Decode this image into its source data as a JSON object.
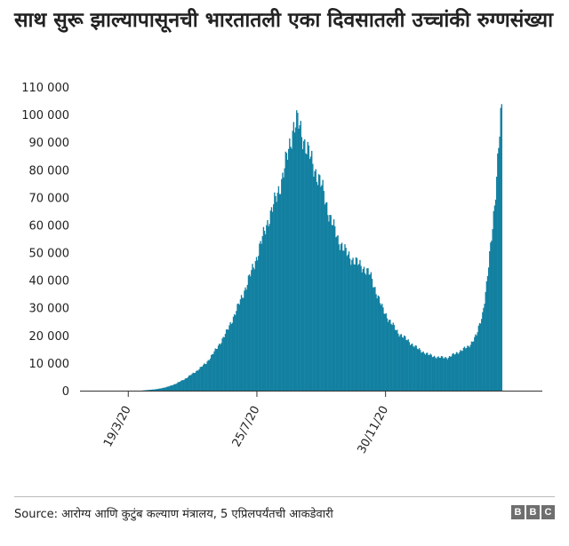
{
  "title": "साथ सुरू झाल्यापासूनची भारतातली एका दिवसातली उच्चांकी रुग्णसंख्या",
  "source": "Source: आरोग्य आणि कुटुंब कल्याण मंत्रालय, 5 एप्रिलपर्यंतची आकडेवारी",
  "logo": [
    "B",
    "B",
    "C"
  ],
  "colors": {
    "bar": "#1380A1",
    "text": "#222222",
    "axis": "#333333",
    "rule": "#bbbbbb"
  },
  "chart_data": {
    "type": "bar",
    "title": "साथ सुरू झाल्यापासूनची भारतातली एका दिवसातली उच्चांकी रुग्णसंख्या",
    "xlabel": "",
    "ylabel": "",
    "ylim": [
      0,
      110000
    ],
    "y_ticks": [
      0,
      10000,
      20000,
      30000,
      40000,
      50000,
      60000,
      70000,
      80000,
      90000,
      100000,
      110000
    ],
    "y_tick_labels": [
      "0",
      "10 000",
      "20 000",
      "30 000",
      "40 000",
      "50 000",
      "60 000",
      "70 000",
      "80 000",
      "90 000",
      "100 000",
      "110 000"
    ],
    "x_tick_labels": [
      "19/3/20",
      "25/7/20",
      "30/11/20"
    ],
    "x_tick_days": [
      48,
      176,
      304
    ],
    "x_range_days": [
      0,
      460
    ],
    "grid": false,
    "legend": "none",
    "series": [
      {
        "unit": "daily",
        "points": [
          [
            0,
            0
          ],
          [
            60,
            0
          ],
          [
            75,
            500
          ],
          [
            85,
            1200
          ],
          [
            95,
            2500
          ],
          [
            105,
            4500
          ],
          [
            115,
            7000
          ],
          [
            125,
            10000
          ],
          [
            135,
            15000
          ],
          [
            145,
            21000
          ],
          [
            155,
            29000
          ],
          [
            165,
            38000
          ],
          [
            175,
            48000
          ],
          [
            185,
            60000
          ],
          [
            192,
            67000
          ],
          [
            200,
            76000
          ],
          [
            207,
            87000
          ],
          [
            212,
            96000
          ],
          [
            216,
            97500
          ],
          [
            220,
            93000
          ],
          [
            226,
            87000
          ],
          [
            232,
            81000
          ],
          [
            240,
            74000
          ],
          [
            248,
            63000
          ],
          [
            256,
            55000
          ],
          [
            264,
            50000
          ],
          [
            272,
            47000
          ],
          [
            280,
            45000
          ],
          [
            288,
            42000
          ],
          [
            294,
            36000
          ],
          [
            300,
            30000
          ],
          [
            308,
            25000
          ],
          [
            316,
            21000
          ],
          [
            326,
            18000
          ],
          [
            336,
            15000
          ],
          [
            346,
            13000
          ],
          [
            356,
            12000
          ],
          [
            366,
            12000
          ],
          [
            376,
            14000
          ],
          [
            386,
            16000
          ],
          [
            394,
            20000
          ],
          [
            400,
            28000
          ],
          [
            404,
            38000
          ],
          [
            408,
            52000
          ],
          [
            412,
            68000
          ],
          [
            416,
            88000
          ],
          [
            419,
            103800
          ]
        ]
      }
    ]
  }
}
